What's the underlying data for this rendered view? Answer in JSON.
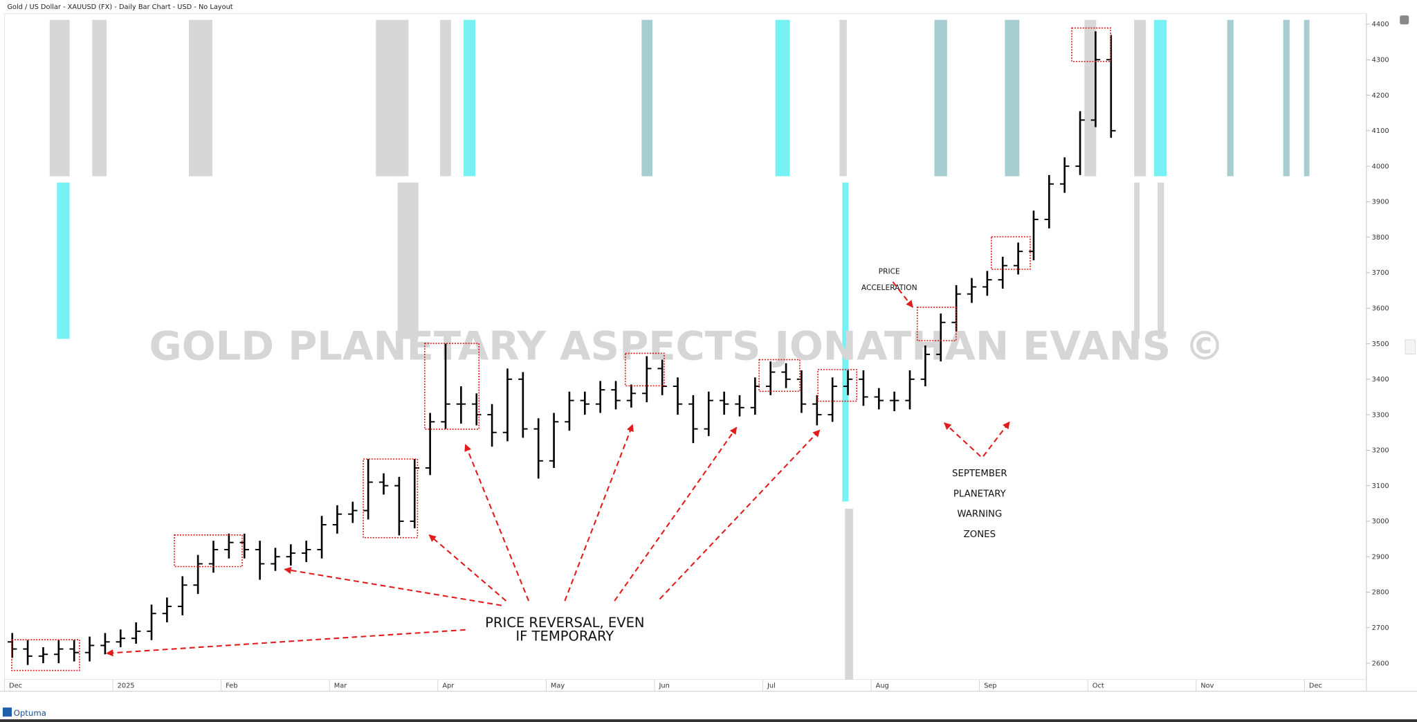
{
  "header": "Gold / US Dollar - XAUUSD (FX) - Daily Bar Chart - USD - No Layout",
  "watermark": "GOLD PLANETARY ASPECTS JONATHAN EVANS ©",
  "brand": "Optuma",
  "chart_data": {
    "type": "ohlc",
    "color": "#000000",
    "log_scale": false,
    "grid": false,
    "y_axis_side": "right",
    "categories": [
      "Dec",
      null,
      null,
      null,
      null,
      null,
      null,
      "2025",
      null,
      null,
      null,
      null,
      null,
      null,
      "Feb",
      null,
      null,
      null,
      null,
      null,
      null,
      "Mar",
      null,
      null,
      null,
      null,
      null,
      null,
      "Apr",
      null,
      null,
      null,
      null,
      null,
      null,
      "May",
      null,
      null,
      null,
      null,
      null,
      null,
      "Jun",
      null,
      null,
      null,
      null,
      null,
      null,
      "Jul",
      null,
      null,
      null,
      null,
      null,
      null,
      "Aug",
      null,
      null,
      null,
      null,
      null,
      null,
      "Sep",
      null,
      null,
      null,
      null,
      null,
      null,
      "Oct",
      null,
      null,
      null,
      null,
      null,
      null,
      "Nov",
      null,
      null,
      null,
      null,
      null,
      null,
      "Dec",
      null,
      null,
      null
    ],
    "open": [
      2660,
      2640,
      2620,
      2625,
      2640,
      2630,
      2650,
      2660,
      2670,
      2690,
      2740,
      2760,
      2820,
      2880,
      2920,
      2940,
      2920,
      2880,
      2900,
      2910,
      2920,
      2990,
      3020,
      3030,
      3110,
      3100,
      3000,
      3150,
      3280,
      3330,
      3330,
      3300,
      3250,
      3400,
      3260,
      3170,
      3280,
      3340,
      3330,
      3370,
      3340,
      3360,
      3430,
      3380,
      3330,
      3260,
      3340,
      3330,
      3320,
      3380,
      3420,
      3400,
      3330,
      3300,
      3380,
      3400,
      3350,
      3340,
      3340,
      3400,
      3470,
      3560,
      3640,
      3660,
      3680,
      3720,
      3760,
      3850,
      3950,
      4000,
      4130,
      4300,
      null,
      null,
      null,
      null,
      null,
      null,
      null,
      null,
      null,
      null,
      null,
      null,
      null,
      null,
      null,
      null
    ],
    "high": [
      2685,
      2665,
      2645,
      2665,
      2665,
      2675,
      2685,
      2695,
      2715,
      2765,
      2785,
      2845,
      2905,
      2945,
      2965,
      2965,
      2945,
      2925,
      2935,
      2945,
      3015,
      3045,
      3055,
      3175,
      3135,
      3125,
      3175,
      3305,
      3500,
      3380,
      3360,
      3330,
      3430,
      3420,
      3290,
      3305,
      3365,
      3365,
      3395,
      3395,
      3385,
      3465,
      3455,
      3405,
      3355,
      3365,
      3365,
      3355,
      3405,
      3450,
      3445,
      3425,
      3355,
      3405,
      3425,
      3425,
      3375,
      3365,
      3425,
      3495,
      3585,
      3665,
      3685,
      3705,
      3745,
      3785,
      3875,
      3975,
      4025,
      4155,
      4380,
      4370,
      null,
      null,
      null,
      null,
      null,
      null,
      null,
      null,
      null,
      null,
      null,
      null,
      null,
      null,
      null,
      null
    ],
    "low": [
      2615,
      2595,
      2600,
      2600,
      2605,
      2605,
      2625,
      2645,
      2655,
      2665,
      2715,
      2735,
      2795,
      2855,
      2895,
      2895,
      2835,
      2860,
      2875,
      2885,
      2895,
      2965,
      2995,
      3005,
      3075,
      2960,
      2980,
      3130,
      3260,
      3275,
      3270,
      3210,
      3225,
      3235,
      3120,
      3150,
      3255,
      3300,
      3305,
      3315,
      3320,
      3335,
      3355,
      3300,
      3220,
      3240,
      3300,
      3295,
      3300,
      3355,
      3375,
      3305,
      3270,
      3280,
      3355,
      3325,
      3315,
      3310,
      3315,
      3380,
      3450,
      3535,
      3615,
      3635,
      3655,
      3695,
      3735,
      3825,
      3925,
      3975,
      4110,
      4080,
      null,
      null,
      null,
      null,
      null,
      null,
      null,
      null,
      null,
      null,
      null,
      null,
      null,
      null,
      null,
      null
    ],
    "close": [
      2640,
      2620,
      2625,
      2640,
      2630,
      2650,
      2660,
      2670,
      2690,
      2740,
      2760,
      2820,
      2880,
      2920,
      2940,
      2920,
      2880,
      2900,
      2910,
      2920,
      2990,
      3020,
      3030,
      3110,
      3100,
      3000,
      3150,
      3280,
      3330,
      3330,
      3300,
      3250,
      3400,
      3260,
      3170,
      3280,
      3340,
      3330,
      3370,
      3340,
      3360,
      3430,
      3380,
      3330,
      3260,
      3340,
      3330,
      3320,
      3380,
      3420,
      3400,
      3330,
      3300,
      3380,
      3400,
      3350,
      3340,
      3340,
      3400,
      3470,
      3560,
      3640,
      3660,
      3680,
      3720,
      3760,
      3850,
      3950,
      4000,
      4130,
      4300,
      4100,
      null,
      null,
      null,
      null,
      null,
      null,
      null,
      null,
      null,
      null,
      null,
      null,
      null,
      null,
      null,
      null
    ],
    "ylim": [
      2554,
      4430
    ],
    "yticks": [
      2600,
      2700,
      2800,
      2900,
      3000,
      3100,
      3200,
      3300,
      3400,
      3500,
      3600,
      3700,
      3800,
      3900,
      4000,
      4100,
      4200,
      4300,
      4400
    ],
    "annotations": [
      {
        "lines": [
          "PRICE REVERSAL, EVEN",
          "IF TEMPORARY"
        ]
      },
      {
        "lines": [
          "PRICE",
          "ACCELERATION"
        ]
      },
      {
        "lines": [
          "SEPTEMBER",
          "PLANETARY",
          "WARNING",
          "ZONES"
        ]
      }
    ]
  }
}
